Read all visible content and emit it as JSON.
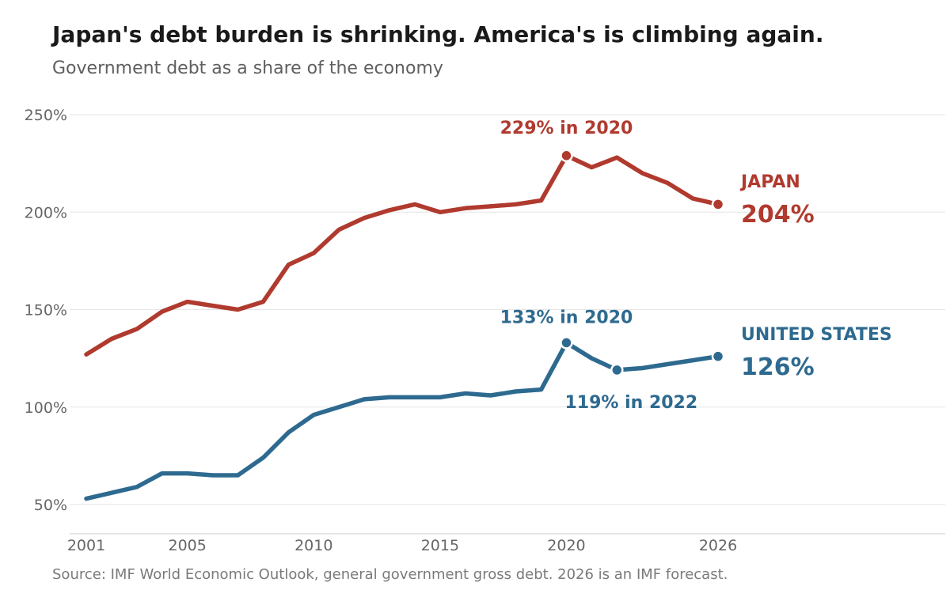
{
  "title": "Japan's debt burden is shrinking. America's is climbing again.",
  "subtitle": "Government debt as a share of the economy",
  "source": "Source: IMF World Economic Outlook, general government gross debt. 2026 is an IMF forecast.",
  "chart_data": {
    "type": "line",
    "ylim": [
      35,
      255
    ],
    "xlim": [
      2001,
      2026
    ],
    "y_ticks": [
      {
        "value": 50,
        "label": "50%"
      },
      {
        "value": 100,
        "label": "100%"
      },
      {
        "value": 150,
        "label": "150%"
      },
      {
        "value": 200,
        "label": "200%"
      },
      {
        "value": 250,
        "label": "250%"
      }
    ],
    "x_ticks": [
      {
        "value": 2001,
        "label": "2001"
      },
      {
        "value": 2005,
        "label": "2005"
      },
      {
        "value": 2010,
        "label": "2010"
      },
      {
        "value": 2015,
        "label": "2015"
      },
      {
        "value": 2020,
        "label": "2020"
      },
      {
        "value": 2026,
        "label": "2026"
      }
    ],
    "grid": true,
    "x": [
      2001,
      2002,
      2003,
      2004,
      2005,
      2006,
      2007,
      2008,
      2009,
      2010,
      2011,
      2012,
      2013,
      2014,
      2015,
      2016,
      2017,
      2018,
      2019,
      2020,
      2021,
      2022,
      2023,
      2024,
      2025,
      2026
    ],
    "series": [
      {
        "key": "japan",
        "name": "JAPAN",
        "end_label": "204%",
        "color": "#b03a2e",
        "values": [
          127,
          135,
          140,
          149,
          154,
          152,
          150,
          154,
          173,
          179,
          191,
          197,
          201,
          204,
          200,
          202,
          203,
          204,
          206,
          229,
          223,
          228,
          220,
          215,
          207,
          204
        ],
        "markers": [
          {
            "x": 2020,
            "y": 229,
            "label": "229% in 2020",
            "label_pos": "above"
          },
          {
            "x": 2026,
            "y": 204,
            "label": "",
            "label_pos": "none"
          }
        ]
      },
      {
        "key": "us",
        "name": "UNITED STATES",
        "end_label": "126%",
        "color": "#2e6a8f",
        "values": [
          53,
          56,
          59,
          66,
          66,
          65,
          65,
          74,
          87,
          96,
          100,
          104,
          105,
          105,
          105,
          107,
          106,
          108,
          109,
          133,
          125,
          119,
          120,
          122,
          124,
          126
        ],
        "markers": [
          {
            "x": 2020,
            "y": 133,
            "label": "133% in 2020",
            "label_pos": "above"
          },
          {
            "x": 2022,
            "y": 119,
            "label": "119% in 2022",
            "label_pos": "below"
          },
          {
            "x": 2026,
            "y": 126,
            "label": "",
            "label_pos": "none"
          }
        ]
      }
    ]
  }
}
